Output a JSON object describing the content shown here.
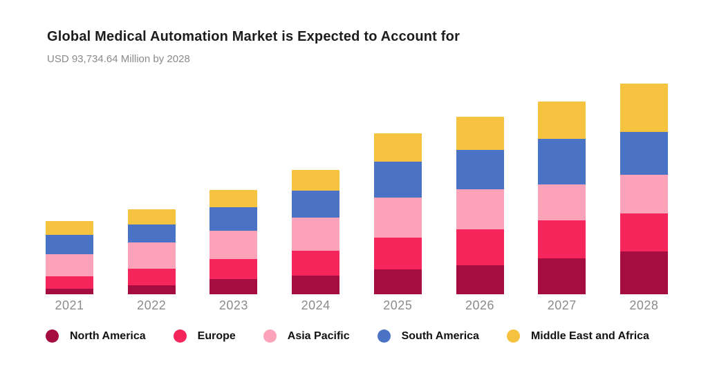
{
  "chart_data": {
    "type": "bar",
    "stacked": true,
    "title": "Global Medical Automation Market is Expected to Account for",
    "subtitle": "USD 93,734.64 Million by 2028",
    "unit": "USD Million",
    "value_axis_visible": false,
    "grid": false,
    "legend_position": "bottom",
    "categories": [
      "2021",
      "2022",
      "2023",
      "2024",
      "2025",
      "2026",
      "2027",
      "2028"
    ],
    "series": [
      {
        "name": "North America",
        "color": "#A50D40",
        "values": [
          2560,
          4125,
          6680,
          8215,
          11200,
          13045,
          15910,
          19170
        ]
      },
      {
        "name": "Europe",
        "color": "#F5265C",
        "values": [
          5540,
          7170,
          8925,
          11290,
          13940,
          15875,
          16925,
          16710
        ]
      },
      {
        "name": "Asia Pacific",
        "color": "#FCA3BA",
        "values": [
          9850,
          11785,
          12615,
          14555,
          17845,
          17755,
          16000,
          17230
        ]
      },
      {
        "name": "South America",
        "color": "#4B73C5",
        "values": [
          8430,
          7910,
          10460,
          12000,
          15910,
          17630,
          20185,
          19075
        ]
      },
      {
        "name": "Middle East and Africa",
        "color": "#F5C33F",
        "values": [
          6150,
          6860,
          7695,
          9140,
          12800,
          14585,
          16740,
          21550
        ]
      }
    ],
    "totals": [
      32530,
      37850,
      46375,
      55200,
      71695,
      78890,
      85760,
      93735
    ],
    "note": "Only the 2028 total (USD 93,734.64 Million) is labeled on screen; per-segment values are estimated from stacked bar heights."
  }
}
